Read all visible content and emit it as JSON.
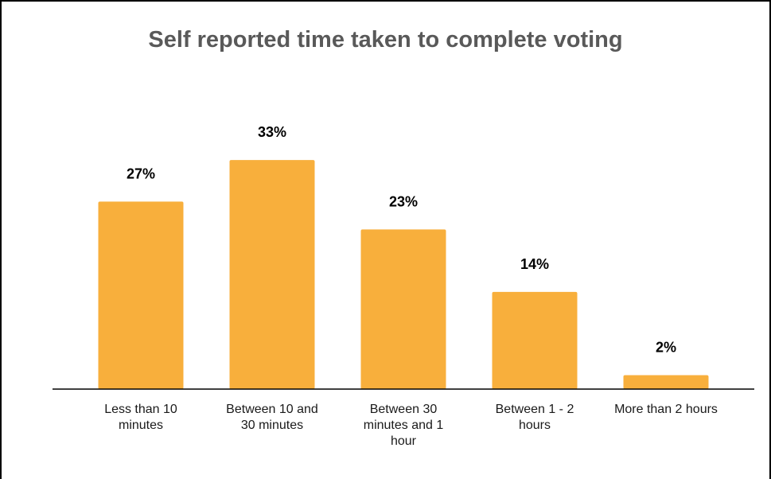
{
  "chart_data": {
    "type": "bar",
    "title": "Self reported time taken to complete voting",
    "categories": [
      [
        "Less than 10",
        "minutes"
      ],
      [
        "Between 10 and",
        "30 minutes"
      ],
      [
        "Between 30",
        "minutes and 1",
        "hour"
      ],
      [
        "Between 1 - 2",
        "hours"
      ],
      [
        "More than 2 hours"
      ]
    ],
    "values": [
      27,
      33,
      23,
      14,
      2
    ],
    "value_labels": [
      "27%",
      "33%",
      "23%",
      "14%",
      "2%"
    ],
    "xlabel": "",
    "ylabel": "",
    "ylim": [
      0,
      40
    ],
    "grid": false,
    "legend": "none",
    "bar_color": "#F8AF3C",
    "title_color": "#595959",
    "axis_color": "#000000"
  }
}
